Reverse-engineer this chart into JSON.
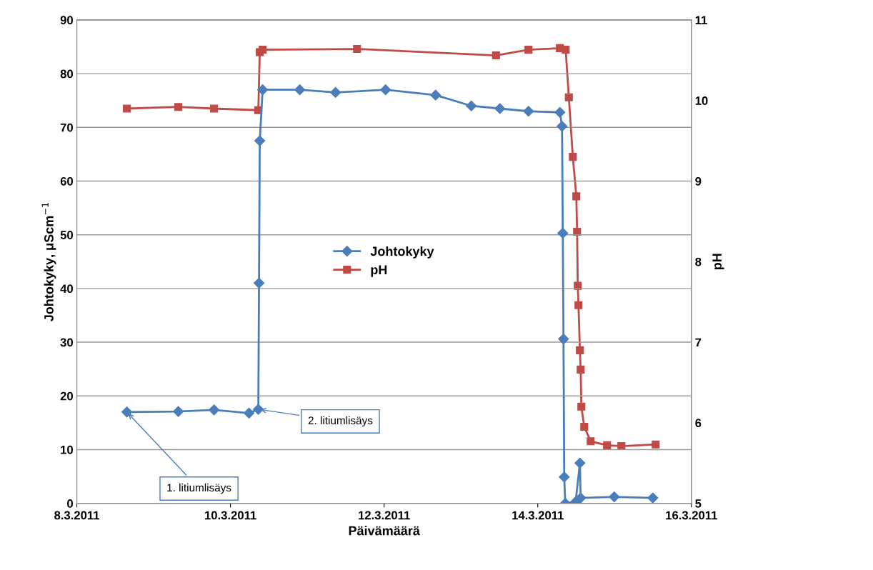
{
  "chart_data": {
    "type": "line",
    "xlabel": "Päivämäärä",
    "ylabel": "Johtokyky, μScm$^{−1}$",
    "y2label": "pH",
    "xlim": [
      "2011-03-08",
      "2011-03-16"
    ],
    "xticks": [
      {
        "value": "2011-03-08",
        "label": "8.3.2011"
      },
      {
        "value": "2011-03-10",
        "label": "10.3.2011"
      },
      {
        "value": "2011-03-12",
        "label": "12.3.2011"
      },
      {
        "value": "2011-03-14",
        "label": "14.3.2011"
      },
      {
        "value": "2011-03-16",
        "label": "16.3.2011"
      }
    ],
    "ylim": [
      0,
      90
    ],
    "yticks": [
      0,
      10,
      20,
      30,
      40,
      50,
      60,
      70,
      80,
      90
    ],
    "y2lim": [
      5,
      11
    ],
    "y2ticks": [
      5,
      6,
      7,
      8,
      9,
      10,
      11
    ],
    "grid": "y",
    "legend": "center",
    "series": [
      {
        "name": "Johtokyky",
        "color": "#4a7ebb",
        "marker": "diamond",
        "x": [
          "2011-03-08T15:38",
          "2011-03-09T07:42",
          "2011-03-09T18:52",
          "2011-03-10T05:48",
          "2011-03-10T08:42",
          "2011-03-10T08:55",
          "2011-03-10T09:09",
          "2011-03-10T10:03",
          "2011-03-10T21:39",
          "2011-03-11T08:49",
          "2011-03-12T00:27",
          "2011-03-12T16:05",
          "2011-03-13T03:14",
          "2011-03-13T12:10",
          "2011-03-13T21:06",
          "2011-03-14T06:55",
          "2011-03-14T07:35",
          "2011-03-14T07:49",
          "2011-03-14T08:02",
          "2011-03-14T08:16",
          "2011-03-14T08:36",
          "2011-03-14T11:50",
          "2011-03-14T13:10",
          "2011-03-14T13:24",
          "2011-03-14T23:53",
          "2011-03-15T11:57"
        ],
        "values": [
          17.0,
          17.1,
          17.4,
          16.8,
          17.5,
          41,
          67.5,
          77,
          77,
          76.5,
          77,
          76,
          74,
          73.5,
          73,
          72.8,
          70.2,
          50.3,
          30.6,
          4.9,
          0,
          0.3,
          7.5,
          1,
          1.2,
          1
        ]
      },
      {
        "name": "pH",
        "color": "#be4b48",
        "marker": "square",
        "axis": "y2",
        "x": [
          "2011-03-08T15:38",
          "2011-03-09T07:42",
          "2011-03-09T18:52",
          "2011-03-10T08:42",
          "2011-03-10T09:09",
          "2011-03-10T10:03",
          "2011-03-11T15:32",
          "2011-03-13T10:57",
          "2011-03-13T21:06",
          "2011-03-14T06:55",
          "2011-03-14T08:43",
          "2011-03-14T09:43",
          "2011-03-14T10:57",
          "2011-03-14T12:03",
          "2011-03-14T12:17",
          "2011-03-14T12:30",
          "2011-03-14T12:43",
          "2011-03-14T13:10",
          "2011-03-14T13:24",
          "2011-03-14T13:37",
          "2011-03-14T14:31",
          "2011-03-14T16:31",
          "2011-03-14T21:39",
          "2011-03-15T02:07",
          "2011-03-15T12:50"
        ],
        "values": [
          9.9,
          9.92,
          9.9,
          9.88,
          10.6,
          10.63,
          10.64,
          10.56,
          10.63,
          10.65,
          10.63,
          10.04,
          9.3,
          8.81,
          8.37,
          7.7,
          7.46,
          6.9,
          6.66,
          6.2,
          5.95,
          5.77,
          5.72,
          5.71,
          5.73
        ]
      }
    ],
    "annotations": [
      {
        "text": "1. litiumlisäys",
        "x": "2011-03-08T15:38",
        "y": 17.0
      },
      {
        "text": "2. litiumlisäys",
        "x": "2011-03-10T08:42",
        "y": 17.5
      }
    ]
  }
}
